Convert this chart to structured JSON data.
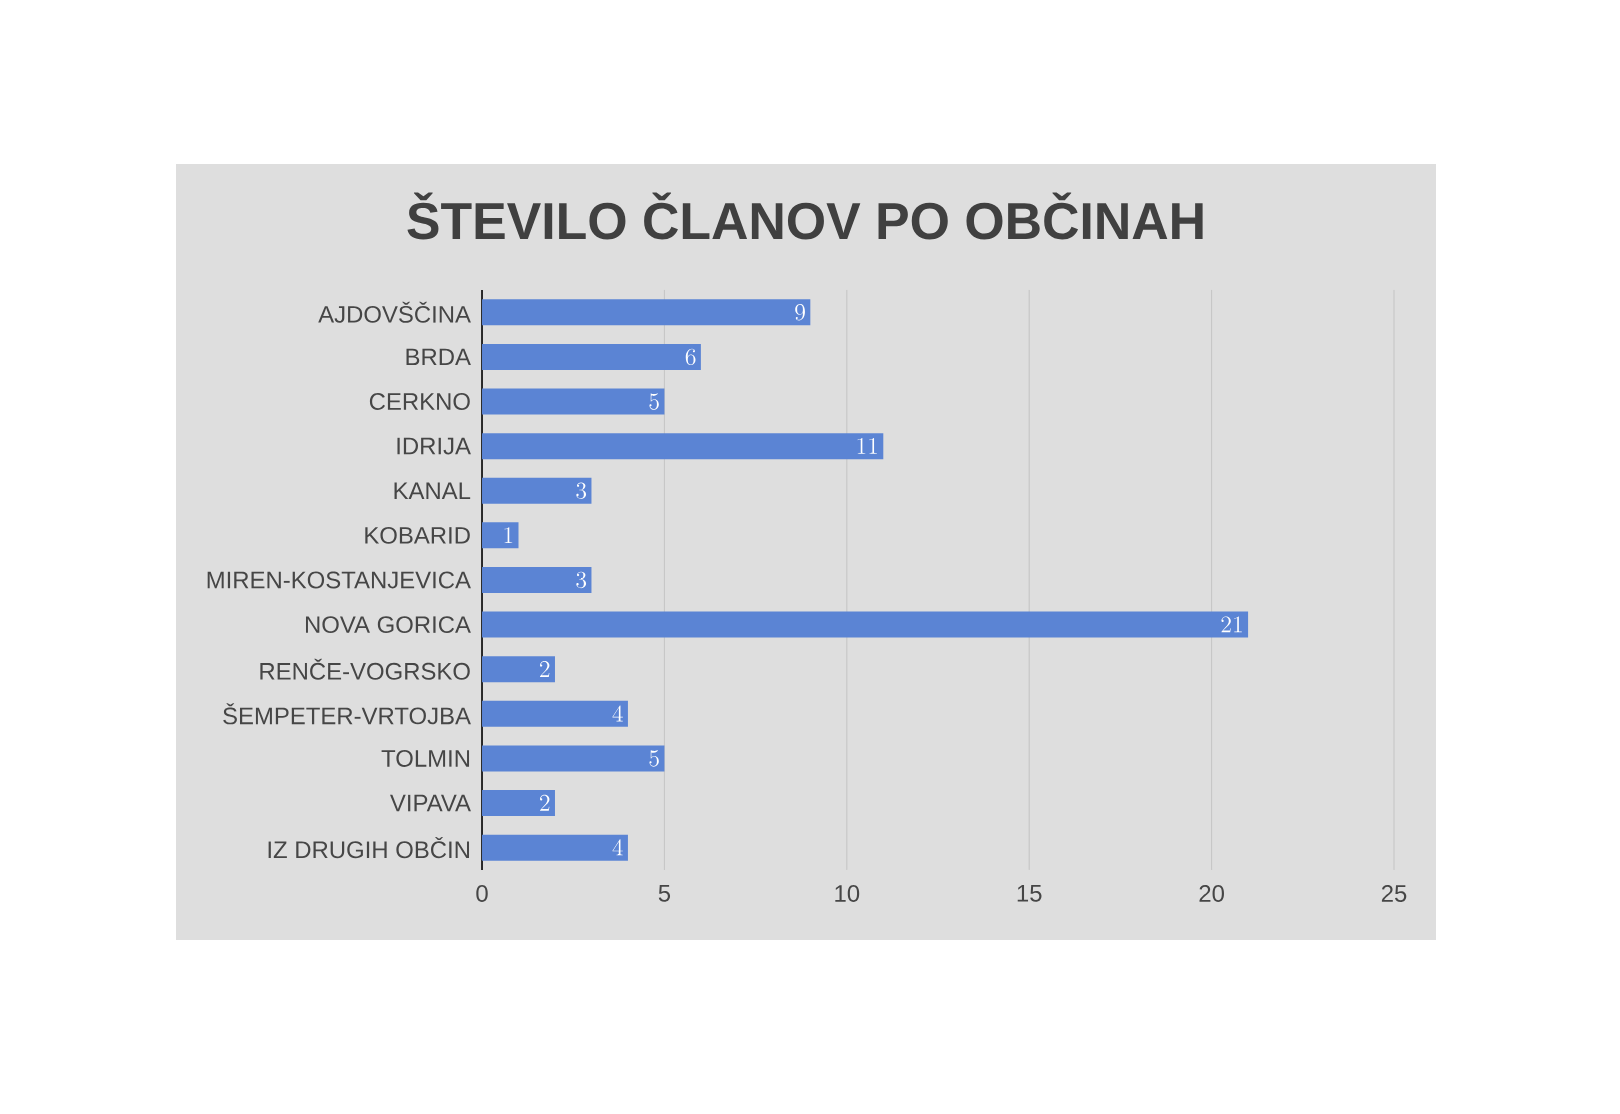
{
  "chart_data": {
    "type": "bar",
    "orientation": "horizontal",
    "title": "ŠTEVILO ČLANOV PO OBČINAH",
    "categories": [
      "AJDOVŠČINA",
      "BRDA",
      "CERKNO",
      "IDRIJA",
      "KANAL",
      "KOBARID",
      "MIREN-KOSTANJEVICA",
      "NOVA GORICA",
      "RENČE-VOGRSKO",
      "ŠEMPETER-VRTOJBA",
      "TOLMIN",
      "VIPAVA",
      "IZ DRUGIH OBČIN"
    ],
    "values": [
      9,
      6,
      5,
      11,
      3,
      1,
      3,
      21,
      2,
      4,
      5,
      2,
      4
    ],
    "color": "#5b84d4",
    "xlim": [
      0,
      25
    ],
    "xticks": [
      0,
      5,
      10,
      15,
      20,
      25
    ],
    "grid": "x",
    "data_labels": true
  }
}
